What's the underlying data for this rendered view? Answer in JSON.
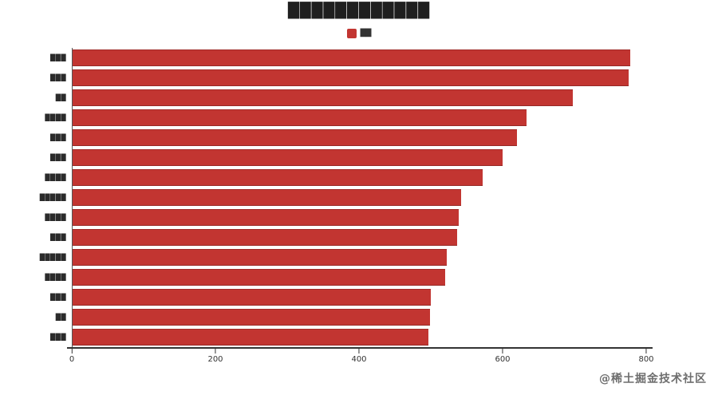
{
  "watermark": "@稀土掘金技术社区",
  "legend": {
    "label": "██",
    "color": "#c23531"
  },
  "chart_data": {
    "type": "bar",
    "orientation": "horizontal",
    "title": "████████████",
    "title_legible": false,
    "note": "Chinese title, legend text and axis labels are rendered too small to read at this resolution; solid block glyphs stand in for the illegible dark text. Values estimated from bar pixel lengths against evenly spaced axis ticks.",
    "categories": [
      "███",
      "███",
      "██",
      "████",
      "███",
      "███",
      "████",
      "█████",
      "████",
      "███",
      "█████",
      "████",
      "███",
      "██",
      "███"
    ],
    "values": [
      778,
      775,
      698,
      633,
      620,
      600,
      572,
      542,
      539,
      536,
      522,
      520,
      500,
      498,
      496
    ],
    "series_name": "██",
    "xlabel": "",
    "ylabel": "",
    "xlim": [
      0,
      800
    ],
    "xticks": [
      0,
      200,
      400,
      600,
      800
    ],
    "bar_color": "#c23531",
    "axis_color": "#333333",
    "legend_position": "top-center",
    "grid": false,
    "background": "#ffffff"
  }
}
